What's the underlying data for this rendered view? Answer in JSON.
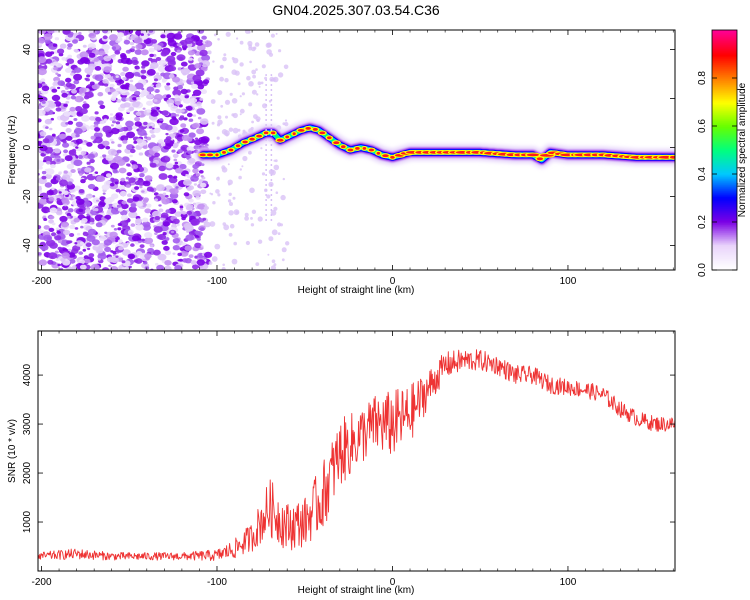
{
  "title": "GN04.2025.307.03.54.C36",
  "chart_data": [
    {
      "type": "heatmap",
      "title": "GN04.2025.307.03.54.C36",
      "xlabel": "Height of straight line (km)",
      "ylabel": "Frequency (Hz)",
      "xlim": [
        -202,
        161
      ],
      "ylim": [
        -50,
        48
      ],
      "x_ticks": [
        -200,
        -100,
        0,
        100
      ],
      "y_ticks": [
        -40,
        -20,
        0,
        20,
        40
      ],
      "noise_region_x": [
        -202,
        -105
      ],
      "ridge": {
        "x": [
          -108,
          -100,
          -92,
          -85,
          -78,
          -72,
          -68,
          -64,
          -58,
          -52,
          -47,
          -42,
          -36,
          -30,
          -24,
          -18,
          -12,
          -6,
          0,
          10,
          30,
          50,
          70,
          80,
          85,
          90,
          100,
          120,
          140,
          161
        ],
        "freq": [
          -3,
          -3,
          -1,
          2,
          4,
          6,
          6,
          3,
          5,
          7,
          8,
          7,
          4,
          1,
          -1,
          0,
          -1,
          -3,
          -4,
          -2,
          -2,
          -2,
          -3,
          -3,
          -5,
          -2,
          -3,
          -3,
          -4,
          -4
        ]
      },
      "colorbar": {
        "label": "Normalized spectral amplitude",
        "range": [
          0,
          1
        ],
        "ticks": [
          "0.0",
          "0.2",
          "0.4",
          "0.6",
          "0.8"
        ],
        "colors": [
          "#ffffff",
          "#e9d4fb",
          "#7b00e5",
          "#0000ff",
          "#00c8ff",
          "#00ff7f",
          "#66ff00",
          "#ffff00",
          "#ff8000",
          "#ff0000",
          "#ff0090"
        ]
      }
    },
    {
      "type": "line",
      "xlabel": "Height of straight line (km)",
      "ylabel": "SNR (10 * v/v)",
      "xlim": [
        -202,
        161
      ],
      "ylim": [
        0,
        4900
      ],
      "x_ticks": [
        -200,
        -100,
        0,
        100
      ],
      "y_ticks": [
        1000,
        2000,
        3000,
        4000
      ],
      "series": [
        {
          "name": "SNR",
          "color": "#ee3333",
          "x": [
            -202,
            -180,
            -160,
            -140,
            -120,
            -100,
            -90,
            -80,
            -70,
            -60,
            -50,
            -40,
            -30,
            -20,
            -10,
            0,
            10,
            20,
            30,
            40,
            50,
            60,
            70,
            80,
            90,
            100,
            110,
            120,
            130,
            140,
            150,
            161
          ],
          "y": [
            300,
            350,
            300,
            300,
            300,
            320,
            450,
            700,
            1300,
            900,
            1000,
            1500,
            2400,
            2700,
            3000,
            3000,
            3200,
            3700,
            4200,
            4300,
            4300,
            4200,
            4000,
            4000,
            3800,
            3750,
            3700,
            3600,
            3300,
            3100,
            3000,
            3000
          ],
          "noise": [
            80,
            110,
            80,
            80,
            80,
            120,
            200,
            300,
            600,
            500,
            500,
            700,
            700,
            600,
            600,
            700,
            600,
            400,
            280,
            230,
            220,
            200,
            200,
            180,
            180,
            170,
            170,
            170,
            170,
            160,
            160,
            160
          ]
        }
      ]
    }
  ]
}
